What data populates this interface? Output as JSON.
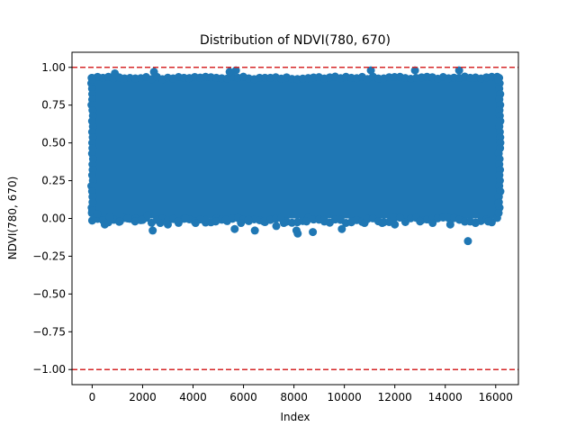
{
  "chart_data": {
    "type": "scatter",
    "title": "Distribution of NDVI(780, 670)",
    "xlabel": "Index",
    "ylabel": "NDVI(780, 670)",
    "xlim": [
      -800,
      16900
    ],
    "ylim": [
      -1.1,
      1.1
    ],
    "x_ticks": [
      0,
      2000,
      4000,
      6000,
      8000,
      10000,
      12000,
      14000,
      16000
    ],
    "x_tick_labels": [
      "0",
      "2000",
      "4000",
      "6000",
      "8000",
      "10000",
      "12000",
      "14000",
      "16000"
    ],
    "y_ticks": [
      -1.0,
      -0.75,
      -0.5,
      -0.25,
      0.0,
      0.25,
      0.5,
      0.75,
      1.0
    ],
    "y_tick_labels": [
      "−1.00",
      "−0.75",
      "−0.50",
      "−0.25",
      "0.00",
      "0.25",
      "0.50",
      "0.75",
      "1.00"
    ],
    "grid": false,
    "legend": "none",
    "marker_color": "#1f77b4",
    "reference_line_color": "#d62728",
    "reference_lines": [
      1.0,
      -1.0
    ],
    "dense_band": {
      "x_range": [
        0,
        16150
      ],
      "y_range": [
        0.0,
        0.93
      ]
    },
    "points": [
      [
        0,
        0.92
      ],
      [
        0,
        0.05
      ],
      [
        200,
        0.03
      ],
      [
        500,
        -0.04
      ],
      [
        700,
        0.01
      ],
      [
        900,
        0.96
      ],
      [
        1100,
        -0.02
      ],
      [
        1400,
        0.0
      ],
      [
        1700,
        -0.02
      ],
      [
        2000,
        -0.01
      ],
      [
        2200,
        0.02
      ],
      [
        2400,
        -0.08
      ],
      [
        2450,
        0.97
      ],
      [
        2700,
        -0.03
      ],
      [
        3000,
        -0.04
      ],
      [
        3400,
        -0.02
      ],
      [
        3700,
        0.0
      ],
      [
        4100,
        -0.03
      ],
      [
        4500,
        -0.01
      ],
      [
        4900,
        -0.02
      ],
      [
        5300,
        -0.01
      ],
      [
        5450,
        0.97
      ],
      [
        5650,
        -0.07
      ],
      [
        5700,
        0.98
      ],
      [
        5900,
        -0.03
      ],
      [
        6200,
        -0.01
      ],
      [
        6450,
        -0.08
      ],
      [
        6800,
        -0.02
      ],
      [
        7300,
        -0.05
      ],
      [
        7600,
        -0.03
      ],
      [
        8100,
        -0.08
      ],
      [
        8150,
        -0.1
      ],
      [
        8500,
        -0.02
      ],
      [
        8750,
        -0.09
      ],
      [
        9200,
        -0.01
      ],
      [
        9900,
        -0.07
      ],
      [
        10300,
        -0.02
      ],
      [
        10800,
        -0.03
      ],
      [
        11050,
        0.98
      ],
      [
        11500,
        -0.03
      ],
      [
        12000,
        -0.04
      ],
      [
        12800,
        0.98
      ],
      [
        13000,
        -0.02
      ],
      [
        13500,
        -0.03
      ],
      [
        14200,
        -0.04
      ],
      [
        14550,
        0.98
      ],
      [
        14900,
        -0.15
      ],
      [
        15200,
        -0.03
      ],
      [
        15700,
        -0.02
      ],
      [
        16100,
        0.92
      ],
      [
        16100,
        0.1
      ]
    ]
  }
}
